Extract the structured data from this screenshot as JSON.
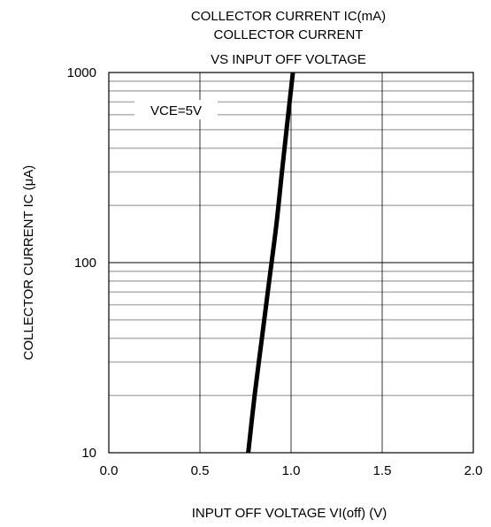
{
  "chart_data": {
    "type": "line",
    "title_lines": [
      "COLLECTOR CURRENT IC(mA)",
      "COLLECTOR CURRENT",
      "VS INPUT OFF VOLTAGE"
    ],
    "xlabel": "INPUT OFF VOLTAGE VI(off) (V)",
    "ylabel": "COLLECTOR CURRENT IC (μA)",
    "xlim": [
      0.0,
      2.0
    ],
    "ylim": [
      10,
      1000
    ],
    "y_scale": "log",
    "x_ticks": [
      0.0,
      0.5,
      1.0,
      1.5,
      2.0
    ],
    "x_tick_labels": [
      "0.0",
      "0.5",
      "1.0",
      "1.5",
      "2.0"
    ],
    "y_ticks": [
      10,
      100,
      1000
    ],
    "y_tick_labels": [
      "10",
      "100",
      "1000"
    ],
    "grid": true,
    "annotation": "VCE=5V",
    "series": [
      {
        "x": [
          0.765,
          0.8,
          0.84,
          0.88,
          0.92,
          0.95,
          0.98,
          1.01
        ],
        "y": [
          10,
          20,
          40,
          80,
          160,
          300,
          550,
          1000
        ]
      }
    ]
  }
}
